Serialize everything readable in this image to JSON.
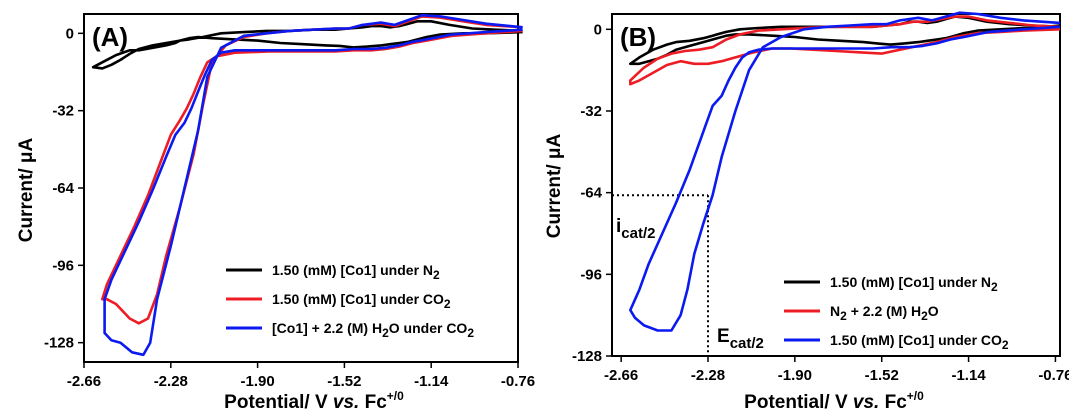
{
  "chart_data": [
    {
      "type": "line",
      "panel_label": "(A)",
      "xlabel": {
        "main": "Potential/ V ",
        "italic": "vs.",
        "mid": " Fc",
        "sup": "+/0"
      },
      "ylabel": {
        "main": "Current/ ",
        "unit": "μA"
      },
      "xlim": [
        -2.66,
        -0.76
      ],
      "ylim": [
        -136,
        8
      ],
      "xticks": [
        -2.66,
        -2.28,
        -1.9,
        -1.52,
        -1.14,
        -0.76
      ],
      "xtick_labels": [
        "-2.66",
        "-2.28",
        "-1.90",
        "-1.52",
        "-1.14",
        "-0.76"
      ],
      "yticks": [
        0,
        -32,
        -64,
        -96,
        -128
      ],
      "ytick_labels": [
        "0",
        "-32",
        "-64",
        "-96",
        "-128"
      ],
      "legend_position": "bottom-right",
      "series": [
        {
          "legend": {
            "main": "1.50 (mM) [Co1] under N",
            "sub": "2"
          },
          "color": "#000000",
          "x": [
            -0.74,
            -0.8,
            -0.9,
            -1.0,
            -1.1,
            -1.16,
            -1.2,
            -1.24,
            -1.28,
            -1.32,
            -1.36,
            -1.42,
            -1.48,
            -1.54,
            -1.6,
            -1.7,
            -1.8,
            -1.9,
            -2.0,
            -2.1,
            -2.16,
            -2.2,
            -2.24,
            -2.3,
            -2.36,
            -2.42,
            -2.46,
            -2.5,
            -2.54,
            -2.58,
            -2.62,
            -2.62,
            -2.58,
            -2.52,
            -2.46,
            -2.42,
            -2.36,
            -2.3,
            -2.26,
            -2.24,
            -2.2,
            -2.14,
            -2.06,
            -1.96,
            -1.86,
            -1.76,
            -1.66,
            -1.56,
            -1.5,
            -1.44,
            -1.4,
            -1.36,
            -1.32,
            -1.28,
            -1.24,
            -1.2,
            -1.14,
            -1.06,
            -0.96,
            -0.86,
            -0.74
          ],
          "y": [
            0.5,
            0.3,
            0.0,
            0.0,
            -0.5,
            -1.5,
            -2.5,
            -3.5,
            -4.0,
            -4.5,
            -5.0,
            -5.5,
            -5.8,
            -5.2,
            -5.0,
            -4.5,
            -4.0,
            -3.0,
            -2.5,
            -2.0,
            -1.5,
            -2.0,
            -3.0,
            -4.0,
            -5.0,
            -6.5,
            -8.5,
            -11.0,
            -13.0,
            -14.5,
            -14.0,
            -14.0,
            -12.0,
            -9.0,
            -7.0,
            -7.0,
            -6.0,
            -5.0,
            -4.0,
            -3.0,
            -2.5,
            -1.5,
            0.0,
            0.5,
            1.0,
            1.0,
            1.5,
            1.5,
            2.0,
            2.5,
            3.0,
            3.0,
            2.5,
            3.0,
            4.0,
            5.0,
            5.0,
            3.5,
            2.0,
            1.5,
            1.0
          ]
        },
        {
          "legend": {
            "main": "1.50 (mM) [Co1] under CO",
            "sub": "2"
          },
          "color": "#ee1c24",
          "x": [
            -0.74,
            -0.9,
            -1.05,
            -1.16,
            -1.22,
            -1.28,
            -1.34,
            -1.4,
            -1.48,
            -1.56,
            -1.7,
            -1.85,
            -2.0,
            -2.08,
            -2.12,
            -2.15,
            -2.18,
            -2.21,
            -2.24,
            -2.28,
            -2.32,
            -2.38,
            -2.44,
            -2.5,
            -2.56,
            -2.58,
            -2.56,
            -2.52,
            -2.46,
            -2.42,
            -2.38,
            -2.34,
            -2.3,
            -2.24,
            -2.18,
            -2.14,
            -2.1,
            -2.04,
            -1.96,
            -1.86,
            -1.76,
            -1.66,
            -1.56,
            -1.5,
            -1.44,
            -1.36,
            -1.3,
            -1.24,
            -1.18,
            -1.1,
            -1.0,
            -0.9,
            -0.74
          ],
          "y": [
            1.0,
            0.0,
            -1.0,
            -3.0,
            -4.0,
            -5.5,
            -6.5,
            -7.0,
            -7.0,
            -7.5,
            -7.5,
            -7.5,
            -8.0,
            -9.5,
            -12.0,
            -18.0,
            -25.0,
            -31.0,
            -36.0,
            -42.0,
            -52.0,
            -67.0,
            -80.0,
            -92.0,
            -104.0,
            -110.0,
            -110.0,
            -112.0,
            -118.0,
            -120.0,
            -118.0,
            -108.0,
            -92.0,
            -72.0,
            -50.0,
            -30.0,
            -12.0,
            -5.0,
            -1.5,
            0.0,
            1.0,
            1.5,
            2.0,
            2.0,
            3.5,
            4.0,
            3.0,
            5.0,
            7.0,
            6.5,
            5.0,
            3.5,
            2.5
          ]
        },
        {
          "legend": {
            "main": "[Co1] + 2.2 (M) H",
            "sub": "2",
            "tail": "O under CO",
            "sub2": "2"
          },
          "color": "#0a1af0",
          "x": [
            -0.74,
            -0.9,
            -1.05,
            -1.16,
            -1.22,
            -1.28,
            -1.34,
            -1.4,
            -1.48,
            -1.56,
            -1.7,
            -1.85,
            -2.0,
            -2.06,
            -2.1,
            -2.13,
            -2.16,
            -2.19,
            -2.22,
            -2.26,
            -2.3,
            -2.36,
            -2.42,
            -2.48,
            -2.54,
            -2.57,
            -2.57,
            -2.54,
            -2.5,
            -2.45,
            -2.4,
            -2.37,
            -2.34,
            -2.28,
            -2.22,
            -2.16,
            -2.12,
            -2.06,
            -1.96,
            -1.86,
            -1.76,
            -1.66,
            -1.56,
            -1.5,
            -1.44,
            -1.36,
            -1.3,
            -1.24,
            -1.18,
            -1.1,
            -1.0,
            -0.9,
            -0.74
          ],
          "y": [
            1.5,
            0.5,
            -0.5,
            -2.5,
            -3.5,
            -5.0,
            -6.0,
            -6.5,
            -6.5,
            -7.0,
            -7.0,
            -7.0,
            -7.0,
            -8.0,
            -11.0,
            -17.0,
            -24.0,
            -31.0,
            -37.0,
            -42.0,
            -51.0,
            -65.0,
            -78.0,
            -90.0,
            -102.0,
            -110.0,
            -124.0,
            -127.0,
            -128.0,
            -132.0,
            -133.0,
            -128.0,
            -110.0,
            -88.0,
            -64.0,
            -40.0,
            -18.0,
            -6.0,
            -1.0,
            0.0,
            1.0,
            1.5,
            2.0,
            2.0,
            3.5,
            4.5,
            3.5,
            5.5,
            7.5,
            7.0,
            5.5,
            4.0,
            2.5
          ]
        }
      ]
    },
    {
      "type": "line",
      "panel_label": "(B)",
      "xlabel": {
        "main": "Potential/ V ",
        "italic": "vs.",
        "mid": " Fc",
        "sup": "+/0"
      },
      "ylabel": {
        "main": "Current/ ",
        "unit": "μA"
      },
      "xlim": [
        -2.7,
        -0.74
      ],
      "ylim": [
        -128,
        6
      ],
      "xticks": [
        -2.66,
        -2.28,
        -1.9,
        -1.52,
        -1.14,
        -0.76
      ],
      "xtick_labels": [
        "-2.66",
        "-2.28",
        "-1.90",
        "-1.52",
        "-1.14",
        "-0.76"
      ],
      "yticks": [
        0,
        -32,
        -64,
        -96,
        -128
      ],
      "ytick_labels": [
        "0",
        "-32",
        "-64",
        "-96",
        "-128"
      ],
      "legend_position": "bottom-right",
      "annotations": {
        "icat": {
          "main": "i",
          "sub": "cat/2",
          "value": -65
        },
        "ecat": {
          "main": "E",
          "sub": "cat/2",
          "value": -2.28
        }
      },
      "series": [
        {
          "legend": {
            "main": "1.50 (mM) [Co1] under N",
            "sub": "2"
          },
          "color": "#000000",
          "x": [
            -0.74,
            -0.8,
            -0.9,
            -1.0,
            -1.1,
            -1.16,
            -1.2,
            -1.24,
            -1.28,
            -1.32,
            -1.36,
            -1.42,
            -1.48,
            -1.54,
            -1.6,
            -1.7,
            -1.8,
            -1.9,
            -2.0,
            -2.1,
            -2.16,
            -2.2,
            -2.24,
            -2.3,
            -2.36,
            -2.42,
            -2.46,
            -2.5,
            -2.54,
            -2.58,
            -2.62,
            -2.62,
            -2.58,
            -2.52,
            -2.46,
            -2.42,
            -2.36,
            -2.3,
            -2.26,
            -2.24,
            -2.2,
            -2.14,
            -2.06,
            -1.96,
            -1.86,
            -1.76,
            -1.66,
            -1.56,
            -1.5,
            -1.44,
            -1.4,
            -1.36,
            -1.32,
            -1.28,
            -1.24,
            -1.2,
            -1.14,
            -1.06,
            -0.96,
            -0.86,
            -0.74
          ],
          "y": [
            1.5,
            1.0,
            0.5,
            0.0,
            -0.5,
            -1.5,
            -2.5,
            -3.5,
            -4.0,
            -4.5,
            -5.0,
            -5.5,
            -6.0,
            -5.5,
            -5.0,
            -4.5,
            -4.0,
            -3.0,
            -2.5,
            -2.0,
            -2.0,
            -2.5,
            -3.5,
            -5.0,
            -6.5,
            -8.0,
            -10.0,
            -11.5,
            -12.5,
            -13.5,
            -13.5,
            -13.5,
            -11.0,
            -8.0,
            -6.0,
            -5.0,
            -4.5,
            -3.5,
            -2.5,
            -2.0,
            -1.0,
            0.0,
            0.5,
            1.0,
            1.0,
            1.0,
            1.0,
            1.0,
            1.5,
            2.0,
            3.0,
            3.0,
            2.5,
            3.0,
            4.0,
            5.0,
            4.5,
            3.0,
            2.0,
            1.5,
            1.0
          ]
        },
        {
          "legend": {
            "main": "N",
            "sub": "2",
            "tail": " + 2.2 (M) H",
            "sub2": "2",
            "tail2": "O"
          },
          "color": "#ee1c24",
          "x": [
            -0.74,
            -0.9,
            -1.0,
            -1.1,
            -1.2,
            -1.28,
            -1.36,
            -1.44,
            -1.52,
            -1.62,
            -1.72,
            -1.82,
            -1.92,
            -2.0,
            -2.08,
            -2.16,
            -2.22,
            -2.28,
            -2.34,
            -2.4,
            -2.46,
            -2.52,
            -2.58,
            -2.62,
            -2.62,
            -2.56,
            -2.5,
            -2.44,
            -2.38,
            -2.32,
            -2.26,
            -2.2,
            -2.14,
            -2.06,
            -1.96,
            -1.86,
            -1.76,
            -1.66,
            -1.56,
            -1.5,
            -1.44,
            -1.38,
            -1.32,
            -1.26,
            -1.2,
            -1.14,
            -1.06,
            -0.96,
            -0.86,
            -0.74
          ],
          "y": [
            0.0,
            -0.5,
            -1.0,
            -1.5,
            -3.0,
            -5.0,
            -6.5,
            -8.0,
            -9.5,
            -9.0,
            -8.5,
            -8.0,
            -7.5,
            -7.5,
            -9.0,
            -11.0,
            -12.5,
            -13.5,
            -13.5,
            -12.5,
            -14.0,
            -17.0,
            -20.0,
            -21.5,
            -20.0,
            -15.0,
            -11.5,
            -9.5,
            -8.5,
            -8.0,
            -7.0,
            -4.0,
            -2.0,
            -0.5,
            0.0,
            0.5,
            1.0,
            1.0,
            1.0,
            1.5,
            2.0,
            3.0,
            3.0,
            4.0,
            5.0,
            5.0,
            3.5,
            2.5,
            1.5,
            1.0
          ]
        },
        {
          "legend": {
            "main": "1.50 (mM) [Co1] under CO",
            "sub": "2"
          },
          "color": "#0a1af0",
          "x": [
            -0.74,
            -0.9,
            -1.05,
            -1.16,
            -1.22,
            -1.28,
            -1.34,
            -1.4,
            -1.48,
            -1.56,
            -1.7,
            -1.85,
            -2.0,
            -2.06,
            -2.1,
            -2.13,
            -2.16,
            -2.19,
            -2.22,
            -2.26,
            -2.3,
            -2.36,
            -2.42,
            -2.48,
            -2.54,
            -2.58,
            -2.62,
            -2.6,
            -2.56,
            -2.5,
            -2.44,
            -2.4,
            -2.37,
            -2.34,
            -2.3,
            -2.26,
            -2.22,
            -2.16,
            -2.1,
            -2.04,
            -1.96,
            -1.86,
            -1.76,
            -1.66,
            -1.56,
            -1.5,
            -1.44,
            -1.36,
            -1.3,
            -1.24,
            -1.18,
            -1.1,
            -1.0,
            -0.9,
            -0.74
          ],
          "y": [
            1.0,
            0.0,
            -1.0,
            -3.0,
            -4.0,
            -5.5,
            -6.5,
            -7.0,
            -7.0,
            -7.5,
            -7.5,
            -7.5,
            -7.5,
            -8.0,
            -9.0,
            -11.0,
            -15.0,
            -20.0,
            -26.0,
            -30.0,
            -40.0,
            -55.0,
            -68.0,
            -80.0,
            -92.0,
            -102.0,
            -110.0,
            -113.0,
            -116.0,
            -118.0,
            -118.0,
            -112.0,
            -102.0,
            -88.0,
            -76.0,
            -65.0,
            -50.0,
            -32.0,
            -16.0,
            -7.0,
            -3.0,
            0.0,
            1.0,
            1.5,
            2.0,
            2.0,
            3.5,
            4.5,
            3.5,
            5.0,
            6.5,
            6.0,
            4.5,
            3.5,
            2.5
          ]
        }
      ]
    }
  ]
}
